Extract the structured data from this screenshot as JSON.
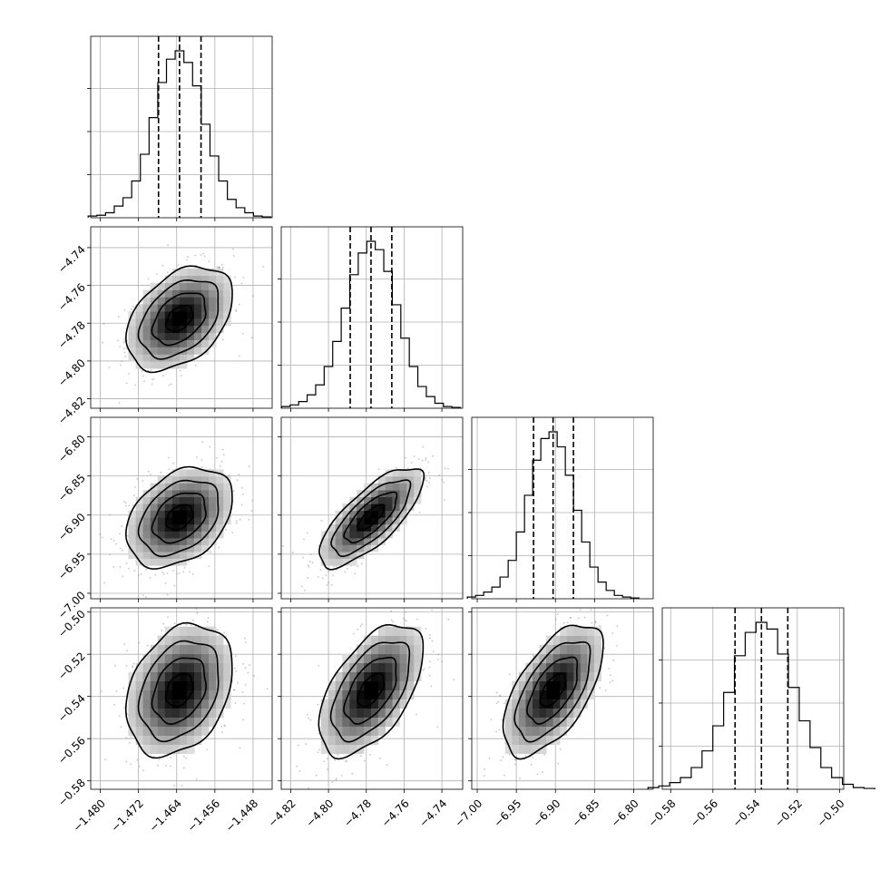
{
  "chart_data": {
    "type": "corner",
    "grid": true,
    "n_params": 4,
    "params": [
      {
        "range": [
          -1.482,
          -1.444
        ],
        "ticks": [
          -1.48,
          -1.472,
          -1.464,
          -1.456,
          -1.448
        ],
        "tick_labels": [
          "−1.480",
          "−1.472",
          "−1.464",
          "−1.456",
          "−1.448"
        ],
        "quantiles": [
          -1.4678,
          -1.4634,
          -1.4589
        ],
        "hist_y_ticks": [
          0.25,
          0.5,
          0.75
        ],
        "hist_density": [
          0.01,
          0.015,
          0.03,
          0.07,
          0.12,
          0.22,
          0.38,
          0.6,
          0.81,
          0.95,
          1.0,
          0.93,
          0.79,
          0.56,
          0.37,
          0.22,
          0.11,
          0.06,
          0.03,
          0.01,
          0.005
        ]
      },
      {
        "range": [
          -4.825,
          -4.729
        ],
        "ticks": [
          -4.82,
          -4.8,
          -4.78,
          -4.76,
          -4.74
        ],
        "tick_labels": [
          "−4.82",
          "−4.80",
          "−4.78",
          "−4.76",
          "−4.74"
        ],
        "quantiles": [
          -4.7885,
          -4.7775,
          -4.7665
        ],
        "hist_y_ticks": [
          0.25,
          0.5,
          0.75
        ],
        "hist_density": [
          0.01,
          0.02,
          0.04,
          0.08,
          0.14,
          0.25,
          0.4,
          0.6,
          0.8,
          0.93,
          1.0,
          0.95,
          0.82,
          0.62,
          0.42,
          0.25,
          0.13,
          0.07,
          0.03,
          0.01,
          0.005
        ]
      },
      {
        "range": [
          -7.007,
          -6.775
        ],
        "ticks": [
          -7.0,
          -6.95,
          -6.9,
          -6.85,
          -6.8
        ],
        "tick_labels": [
          "−7.00",
          "−6.95",
          "−6.90",
          "−6.85",
          "−6.80"
        ],
        "quantiles": [
          -6.928,
          -6.903,
          -6.877
        ],
        "hist_y_ticks": [
          0.25,
          0.5,
          0.75
        ],
        "hist_density": [
          0.01,
          0.02,
          0.04,
          0.07,
          0.13,
          0.23,
          0.4,
          0.62,
          0.83,
          0.96,
          1.0,
          0.91,
          0.74,
          0.53,
          0.34,
          0.19,
          0.1,
          0.05,
          0.02,
          0.01,
          0.005
        ]
      },
      {
        "range": [
          -0.584,
          -0.498
        ],
        "ticks": [
          -0.58,
          -0.56,
          -0.54,
          -0.52,
          -0.5
        ],
        "tick_labels": [
          "−0.58",
          "−0.56",
          "−0.54",
          "−0.52",
          "−0.50"
        ],
        "quantiles": [
          -0.5495,
          -0.537,
          -0.5245
        ],
        "hist_y_ticks": [
          0.25,
          0.5,
          0.75
        ],
        "hist_density": [
          0.01,
          0.02,
          0.04,
          0.07,
          0.13,
          0.23,
          0.38,
          0.58,
          0.8,
          0.94,
          1.0,
          0.96,
          0.81,
          0.61,
          0.41,
          0.25,
          0.13,
          0.07,
          0.03,
          0.01,
          0.005
        ]
      }
    ],
    "correlations": [
      {
        "row": 1,
        "col": 0,
        "rho": 0.4
      },
      {
        "row": 2,
        "col": 0,
        "rho": 0.35
      },
      {
        "row": 2,
        "col": 1,
        "rho": 0.75
      },
      {
        "row": 3,
        "col": 0,
        "rho": 0.3
      },
      {
        "row": 3,
        "col": 1,
        "rho": 0.55
      },
      {
        "row": 3,
        "col": 2,
        "rho": 0.6
      }
    ],
    "contour_levels_sigma": [
      0.5,
      1.0,
      1.5,
      2.0
    ],
    "scatter_count_per_panel": 650,
    "colors": {
      "lines": "#000000",
      "scatter": "#7f7f7f",
      "grid": "#b0b0b0",
      "density_dark": "#000000",
      "density_light": "#ffffff"
    }
  }
}
